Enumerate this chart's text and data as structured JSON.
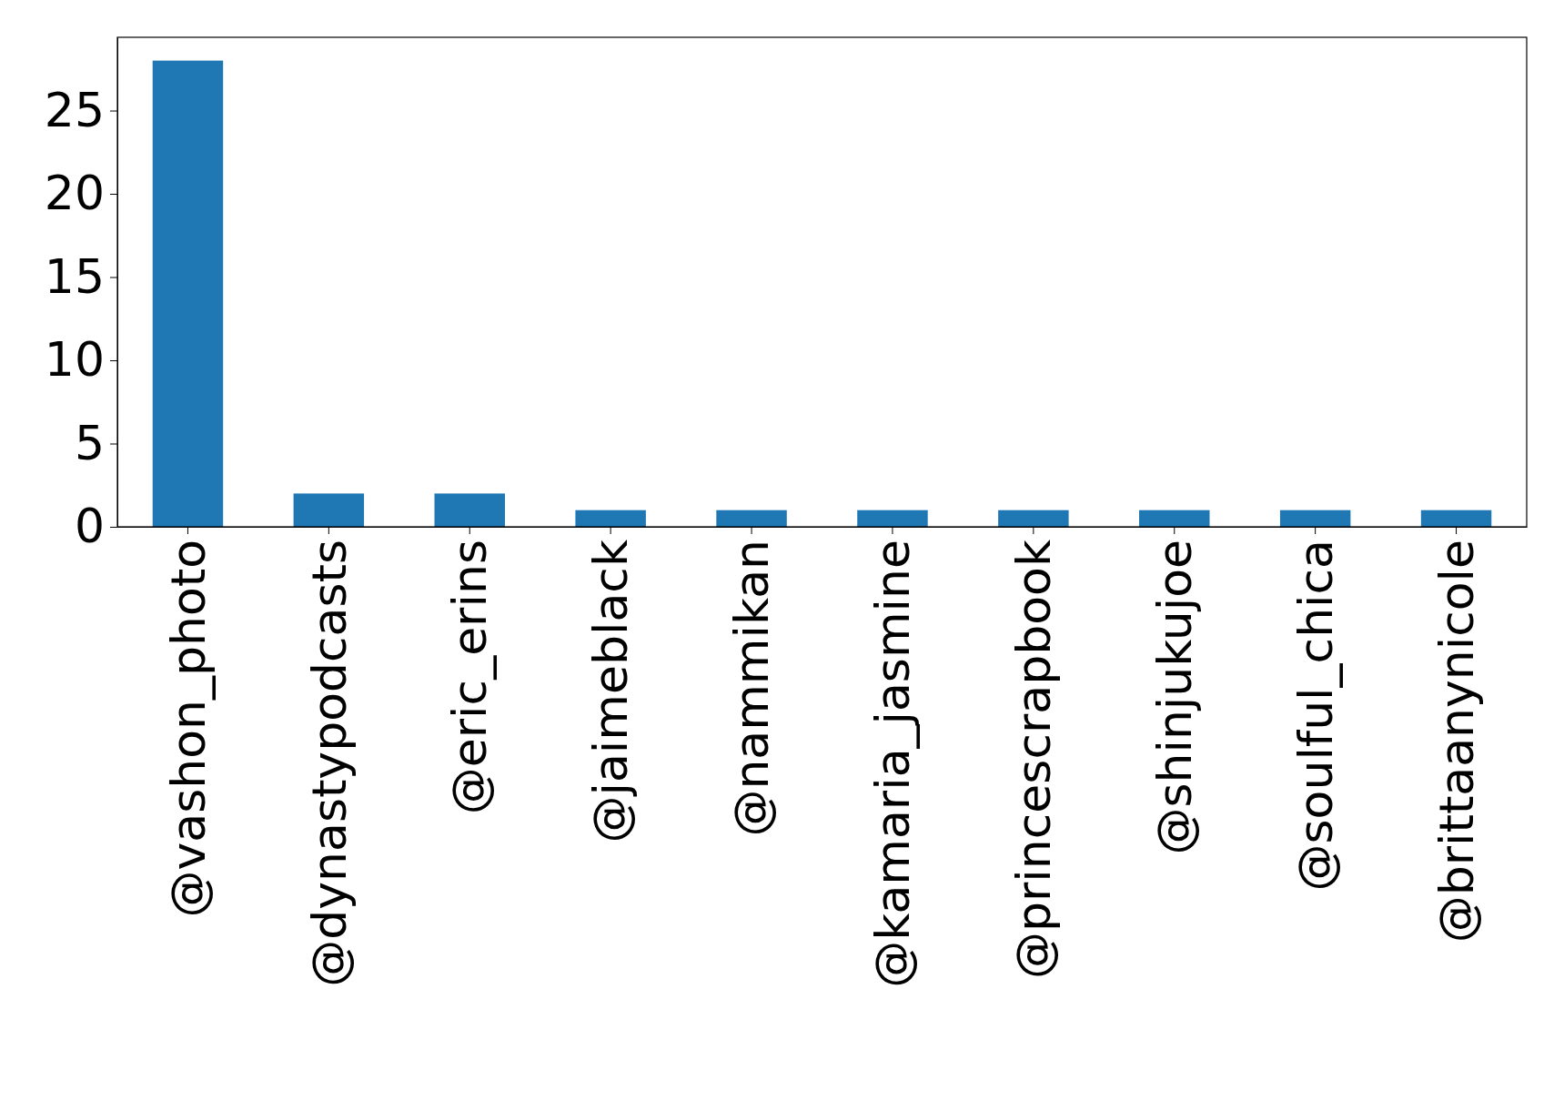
{
  "chart_data": {
    "type": "bar",
    "categories": [
      "@vashon_photo",
      "@dynastypodcasts",
      "@eric_erins",
      "@jaimeblack",
      "@nammikan",
      "@kamaria_jasmine",
      "@princescrapbook",
      "@shinjukujoe",
      "@soulful_chica",
      "@brittaanynicole"
    ],
    "values": [
      28,
      2,
      2,
      1,
      1,
      1,
      1,
      1,
      1,
      1
    ],
    "color": "#1f77b4",
    "ylim": [
      0,
      29.4
    ],
    "yticks": [
      0,
      5,
      10,
      15,
      20,
      25
    ],
    "grid": false
  }
}
